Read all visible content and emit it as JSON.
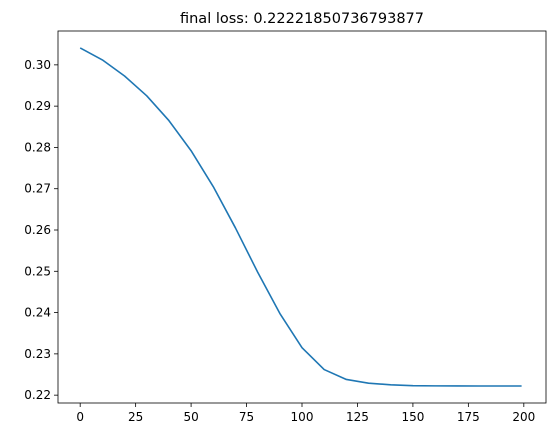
{
  "chart_data": {
    "type": "line",
    "title": "final loss: 0.22221850736793877",
    "xlabel": "",
    "ylabel": "",
    "xlim": [
      -10,
      210
    ],
    "ylim": [
      0.2181,
      0.3082
    ],
    "x_ticks": [
      0,
      25,
      50,
      75,
      100,
      125,
      150,
      175,
      200
    ],
    "x_tick_labels": [
      "0",
      "25",
      "50",
      "75",
      "100",
      "125",
      "150",
      "175",
      "200"
    ],
    "y_ticks": [
      0.22,
      0.23,
      0.24,
      0.25,
      0.26,
      0.27,
      0.28,
      0.29,
      0.3
    ],
    "y_tick_labels": [
      "0.22",
      "0.23",
      "0.24",
      "0.25",
      "0.26",
      "0.27",
      "0.28",
      "0.29",
      "0.30"
    ],
    "grid": false,
    "legend": "none",
    "series": [
      {
        "color": "#1f77b4",
        "x": [
          0,
          10,
          20,
          30,
          40,
          50,
          60,
          70,
          80,
          90,
          100,
          110,
          120,
          130,
          140,
          150,
          160,
          170,
          180,
          190,
          199
        ],
        "y": [
          0.3041,
          0.3012,
          0.2973,
          0.2925,
          0.2865,
          0.2792,
          0.2705,
          0.2605,
          0.2498,
          0.2398,
          0.2315,
          0.2262,
          0.2238,
          0.2229,
          0.2225,
          0.2223,
          0.22225,
          0.22223,
          0.22222,
          0.22222,
          0.22222
        ]
      }
    ]
  }
}
